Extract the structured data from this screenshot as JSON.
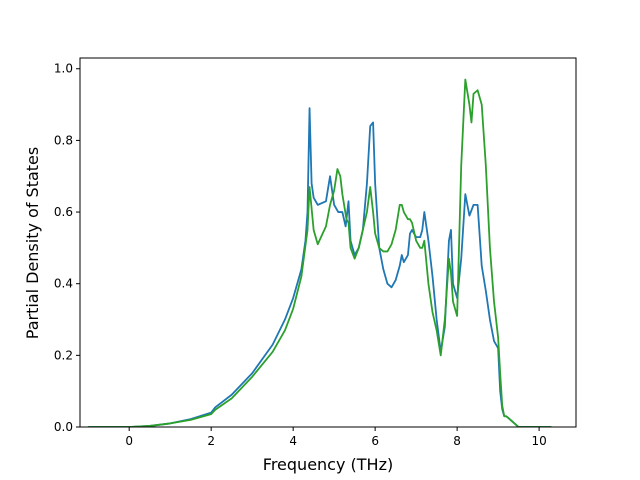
{
  "chart_data": {
    "type": "line",
    "title": "",
    "xlabel": "Frequency (THz)",
    "ylabel": "Partial Density of States",
    "xlim": [
      -1.2,
      10.9
    ],
    "ylim": [
      0.0,
      1.03
    ],
    "xticks": [
      0,
      2,
      4,
      6,
      8,
      10
    ],
    "yticks": [
      0.0,
      0.2,
      0.4,
      0.6,
      0.8,
      1.0
    ],
    "grid": false,
    "legend": "none",
    "series": [
      {
        "color": "#1f77b4",
        "x": [
          -1.0,
          0.0,
          0.5,
          1.0,
          1.5,
          2.0,
          2.1,
          2.5,
          3.0,
          3.5,
          3.8,
          4.0,
          4.2,
          4.3,
          4.35,
          4.4,
          4.45,
          4.5,
          4.6,
          4.8,
          4.9,
          5.0,
          5.1,
          5.2,
          5.28,
          5.32,
          5.35,
          5.4,
          5.5,
          5.6,
          5.7,
          5.8,
          5.88,
          5.95,
          6.0,
          6.1,
          6.2,
          6.3,
          6.4,
          6.5,
          6.6,
          6.65,
          6.7,
          6.8,
          6.85,
          6.9,
          7.0,
          7.1,
          7.15,
          7.2,
          7.3,
          7.35,
          7.4,
          7.5,
          7.6,
          7.7,
          7.8,
          7.85,
          7.9,
          8.0,
          8.1,
          8.2,
          8.3,
          8.4,
          8.5,
          8.6,
          8.7,
          8.8,
          8.9,
          9.0,
          9.05,
          9.1,
          9.15,
          9.2,
          9.3,
          9.4,
          9.5,
          10.0,
          10.3
        ],
        "y": [
          0.0,
          0.0,
          0.003,
          0.01,
          0.022,
          0.04,
          0.055,
          0.09,
          0.15,
          0.23,
          0.3,
          0.36,
          0.44,
          0.52,
          0.6,
          0.89,
          0.68,
          0.64,
          0.62,
          0.63,
          0.7,
          0.62,
          0.6,
          0.6,
          0.56,
          0.6,
          0.63,
          0.52,
          0.48,
          0.5,
          0.55,
          0.68,
          0.84,
          0.85,
          0.68,
          0.5,
          0.44,
          0.4,
          0.39,
          0.41,
          0.45,
          0.48,
          0.46,
          0.48,
          0.54,
          0.55,
          0.53,
          0.53,
          0.55,
          0.6,
          0.52,
          0.47,
          0.42,
          0.3,
          0.21,
          0.28,
          0.52,
          0.55,
          0.4,
          0.36,
          0.47,
          0.65,
          0.59,
          0.62,
          0.62,
          0.45,
          0.38,
          0.3,
          0.24,
          0.22,
          0.1,
          0.05,
          0.03,
          0.03,
          0.02,
          0.01,
          0.0,
          0.0,
          0.0
        ]
      },
      {
        "color": "#2ca02c",
        "x": [
          -1.0,
          0.0,
          0.5,
          1.0,
          1.5,
          2.0,
          2.1,
          2.5,
          3.0,
          3.5,
          3.8,
          4.0,
          4.2,
          4.35,
          4.4,
          4.5,
          4.6,
          4.8,
          4.9,
          5.0,
          5.08,
          5.15,
          5.2,
          5.3,
          5.35,
          5.4,
          5.5,
          5.6,
          5.7,
          5.8,
          5.88,
          5.95,
          6.0,
          6.1,
          6.2,
          6.3,
          6.4,
          6.5,
          6.6,
          6.65,
          6.7,
          6.8,
          6.85,
          6.9,
          7.0,
          7.1,
          7.15,
          7.2,
          7.3,
          7.4,
          7.5,
          7.6,
          7.7,
          7.8,
          7.85,
          7.9,
          8.0,
          8.1,
          8.2,
          8.3,
          8.35,
          8.4,
          8.5,
          8.6,
          8.7,
          8.8,
          8.9,
          9.0,
          9.05,
          9.1,
          9.15,
          9.2,
          9.3,
          9.4,
          9.5,
          10.0,
          10.3
        ],
        "y": [
          0.0,
          0.0,
          0.003,
          0.01,
          0.02,
          0.036,
          0.048,
          0.08,
          0.14,
          0.21,
          0.27,
          0.33,
          0.42,
          0.55,
          0.67,
          0.55,
          0.51,
          0.56,
          0.62,
          0.66,
          0.72,
          0.7,
          0.65,
          0.58,
          0.57,
          0.5,
          0.47,
          0.5,
          0.55,
          0.6,
          0.67,
          0.6,
          0.54,
          0.5,
          0.49,
          0.49,
          0.51,
          0.55,
          0.62,
          0.62,
          0.6,
          0.58,
          0.58,
          0.57,
          0.52,
          0.5,
          0.5,
          0.52,
          0.4,
          0.32,
          0.27,
          0.2,
          0.3,
          0.47,
          0.43,
          0.35,
          0.31,
          0.73,
          0.97,
          0.9,
          0.85,
          0.93,
          0.94,
          0.9,
          0.73,
          0.5,
          0.35,
          0.25,
          0.15,
          0.06,
          0.03,
          0.03,
          0.02,
          0.01,
          0.0,
          0.0,
          0.0
        ]
      }
    ]
  }
}
